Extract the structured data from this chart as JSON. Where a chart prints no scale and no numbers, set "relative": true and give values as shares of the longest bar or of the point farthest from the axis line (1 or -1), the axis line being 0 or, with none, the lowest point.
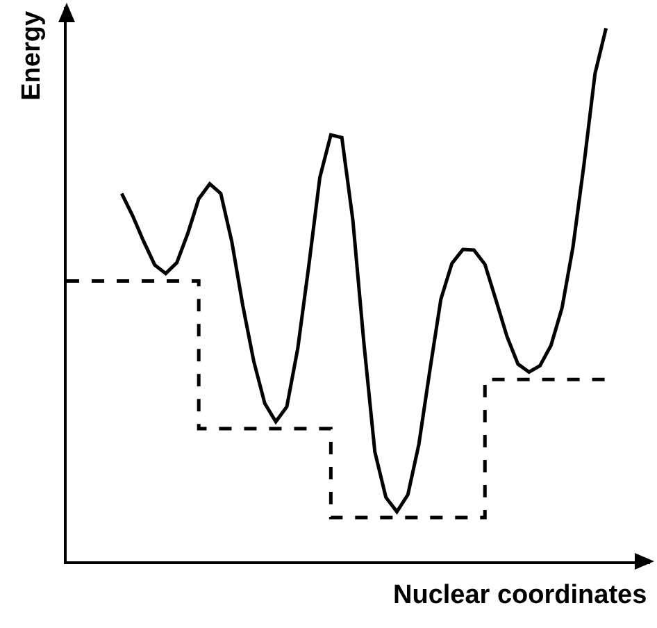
{
  "chart_data": {
    "type": "line",
    "relative": true,
    "xlabel": "Nuclear coordinates",
    "ylabel": "Energy",
    "grid": false,
    "marker": "none",
    "categories": [
      null,
      null,
      null,
      null,
      null,
      null,
      null,
      null,
      null,
      null,
      null,
      null,
      null,
      null,
      null,
      null,
      null,
      null,
      null,
      null,
      null,
      null,
      null,
      null,
      null,
      null,
      null,
      null,
      null,
      null,
      null,
      null,
      null,
      null,
      null,
      null,
      null,
      null,
      null,
      null,
      null,
      null,
      null,
      null,
      null,
      null,
      null,
      null,
      null,
      null
    ],
    "series": [
      {
        "type": "line",
        "color": "#000000",
        "line_style": "solid",
        "values": [
          null,
          null,
          null,
          null,
          null,
          0.69,
          0.648,
          0.6,
          0.556,
          0.54,
          0.56,
          0.615,
          0.68,
          0.708,
          0.69,
          0.6,
          0.48,
          0.375,
          0.296,
          0.262,
          0.29,
          0.4,
          0.555,
          0.72,
          0.8,
          0.795,
          0.64,
          0.41,
          0.205,
          0.12,
          0.093,
          0.125,
          0.22,
          0.359,
          0.492,
          0.559,
          0.585,
          0.584,
          0.557,
          0.49,
          0.422,
          0.37,
          0.355,
          0.367,
          0.405,
          0.475,
          0.59,
          0.745,
          0.915,
          1.0
        ]
      },
      {
        "type": "step",
        "color": "#000000",
        "line_style": "dashed",
        "values": [
          0.526,
          0.526,
          0.526,
          0.526,
          0.526,
          0.526,
          0.526,
          0.526,
          0.526,
          0.526,
          0.526,
          0.526,
          0.249,
          0.249,
          0.249,
          0.249,
          0.249,
          0.249,
          0.249,
          0.249,
          0.249,
          0.249,
          0.249,
          0.249,
          0.082,
          0.082,
          0.082,
          0.082,
          0.082,
          0.082,
          0.082,
          0.082,
          0.082,
          0.082,
          0.082,
          0.082,
          0.082,
          0.082,
          0.341,
          0.341,
          0.341,
          0.341,
          0.341,
          0.341,
          0.341,
          0.341,
          0.341,
          0.341,
          0.341,
          0.341
        ]
      }
    ]
  }
}
